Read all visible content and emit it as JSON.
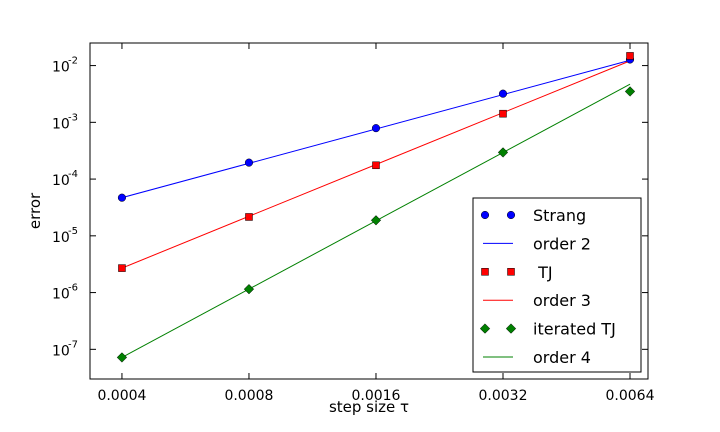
{
  "chart_data": {
    "type": "scatter",
    "xscale": "log2",
    "yscale": "log10",
    "xlabel": "step size τ",
    "ylabel": "error",
    "xlim": [
      0.000336,
      0.00706
    ],
    "ylim": [
      3e-08,
      0.025
    ],
    "grid": false,
    "legend_placement": "lower-right",
    "x_ticks": [
      {
        "value": 0.0004,
        "label": "0.0004"
      },
      {
        "value": 0.0008,
        "label": "0.0008"
      },
      {
        "value": 0.0016,
        "label": "0.0016"
      },
      {
        "value": 0.0032,
        "label": "0.0032"
      },
      {
        "value": 0.0064,
        "label": "0.0064"
      }
    ],
    "y_ticks": [
      {
        "value": 1e-07,
        "base": "10",
        "exp": "-7"
      },
      {
        "value": 1e-06,
        "base": "10",
        "exp": "-6"
      },
      {
        "value": 1e-05,
        "base": "10",
        "exp": "-5"
      },
      {
        "value": 0.0001,
        "base": "10",
        "exp": "-4"
      },
      {
        "value": 0.001,
        "base": "10",
        "exp": "-3"
      },
      {
        "value": 0.01,
        "base": "10",
        "exp": "-2"
      }
    ],
    "series": [
      {
        "name": "Strang",
        "kind": "markers",
        "marker": "circle",
        "color": "#0000ff",
        "x": [
          0.0004,
          0.0008,
          0.0016,
          0.0032,
          0.0064
        ],
        "y": [
          4.7e-05,
          0.000195,
          0.00079,
          0.0032,
          0.0128
        ]
      },
      {
        "name": "order 2",
        "kind": "line",
        "color": "#0000ff",
        "x": [
          0.0004,
          0.0064
        ],
        "y": [
          4.7e-05,
          0.0124
        ]
      },
      {
        "name": " TJ",
        "kind": "markers",
        "marker": "square",
        "color": "#ff0000",
        "x": [
          0.0004,
          0.0008,
          0.0016,
          0.0032,
          0.0064
        ],
        "y": [
          2.7e-06,
          2.15e-05,
          0.000175,
          0.00142,
          0.0148
        ]
      },
      {
        "name": "order 3",
        "kind": "line",
        "color": "#ff0000",
        "x": [
          0.0004,
          0.0064
        ],
        "y": [
          2.7e-06,
          0.0121
        ]
      },
      {
        "name": "iterated TJ",
        "kind": "markers",
        "marker": "diamond",
        "color": "#008000",
        "x": [
          0.0004,
          0.0008,
          0.0016,
          0.0032,
          0.0064
        ],
        "y": [
          7.2e-08,
          1.15e-06,
          1.88e-05,
          0.000295,
          0.0035
        ]
      },
      {
        "name": "order 4",
        "kind": "line",
        "color": "#008000",
        "x": [
          0.0004,
          0.0064
        ],
        "y": [
          7.2e-08,
          0.0047
        ]
      }
    ]
  }
}
